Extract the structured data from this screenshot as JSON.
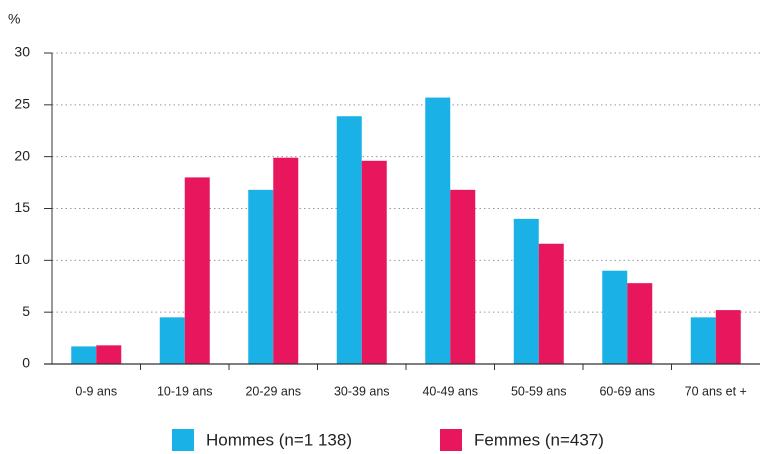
{
  "chart_data": {
    "type": "bar",
    "y_label": "%",
    "categories": [
      "0-9 ans",
      "10-19 ans",
      "20-29 ans",
      "30-39 ans",
      "40-49 ans",
      "50-59 ans",
      "60-69 ans",
      "70 ans et +"
    ],
    "series": [
      {
        "name": "Hommes (n=1 138)",
        "color": "#1ab1e6",
        "values": [
          1.7,
          4.5,
          16.8,
          23.9,
          25.7,
          14.0,
          9.0,
          4.5
        ]
      },
      {
        "name": "Femmes (n=437)",
        "color": "#e8175d",
        "values": [
          1.8,
          18.0,
          19.9,
          19.6,
          16.8,
          11.6,
          7.8,
          5.2
        ]
      }
    ],
    "ylim": [
      0,
      30
    ],
    "yticks": [
      0,
      5,
      10,
      15,
      20,
      25,
      30
    ],
    "grid": true,
    "legend": "bottom"
  }
}
